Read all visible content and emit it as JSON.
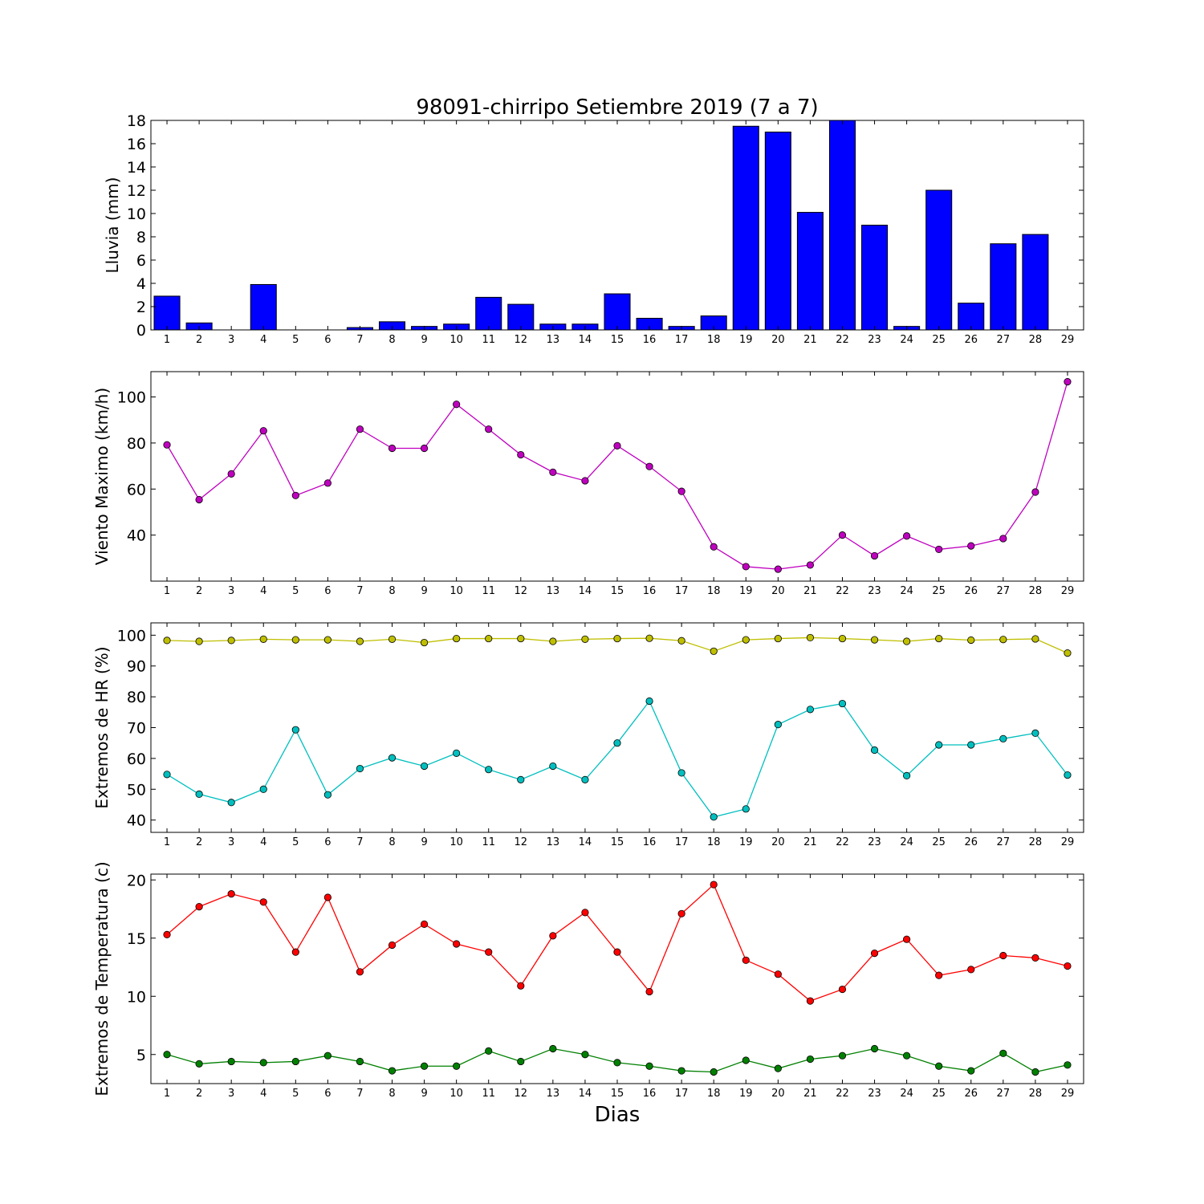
{
  "figure_title": "98091-chirripo Setiembre 2019  (7 a 7)",
  "x_label": "Dias",
  "chart_data": [
    {
      "type": "bar",
      "ylabel": "Lluvia (mm)",
      "ylim": [
        0,
        18
      ],
      "yticks": [
        0,
        2,
        4,
        6,
        8,
        10,
        12,
        14,
        16,
        18
      ],
      "x": [
        1,
        2,
        3,
        4,
        5,
        6,
        7,
        8,
        9,
        10,
        11,
        12,
        13,
        14,
        15,
        16,
        17,
        18,
        19,
        20,
        21,
        22,
        23,
        24,
        25,
        26,
        27,
        28,
        29
      ],
      "color": "#0000ff",
      "series": [
        {
          "values": [
            2.9,
            0.6,
            0,
            3.9,
            0,
            0,
            0.2,
            0.7,
            0.3,
            0.5,
            2.8,
            2.2,
            0.5,
            0.5,
            3.1,
            1.0,
            0.3,
            1.2,
            17.5,
            17.0,
            10.1,
            18.0,
            9.0,
            0.3,
            12.0,
            2.3,
            7.4,
            8.2,
            0
          ]
        }
      ]
    },
    {
      "type": "line",
      "ylabel": "Viento Maximo (km/h)",
      "ylim": [
        20,
        111
      ],
      "yticks": [
        40,
        60,
        80,
        100
      ],
      "x": [
        1,
        2,
        3,
        4,
        5,
        6,
        7,
        8,
        9,
        10,
        11,
        12,
        13,
        14,
        15,
        16,
        17,
        18,
        19,
        20,
        21,
        22,
        23,
        24,
        25,
        26,
        27,
        28,
        29
      ],
      "series": [
        {
          "color": "#bf00bf",
          "values": [
            79.2,
            55.4,
            66.6,
            85.3,
            57.2,
            62.6,
            86.0,
            77.7,
            77.7,
            96.8,
            86.0,
            74.9,
            67.3,
            63.6,
            78.8,
            69.8,
            59.0,
            34.9,
            26.3,
            25.2,
            27.0,
            40.0,
            31.0,
            39.6,
            33.8,
            35.3,
            38.5,
            58.7,
            106.6
          ]
        }
      ]
    },
    {
      "type": "line",
      "ylabel": "Extremos de HR (%)",
      "ylim": [
        36,
        104
      ],
      "yticks": [
        40,
        50,
        60,
        70,
        80,
        90,
        100
      ],
      "x": [
        1,
        2,
        3,
        4,
        5,
        6,
        7,
        8,
        9,
        10,
        11,
        12,
        13,
        14,
        15,
        16,
        17,
        18,
        19,
        20,
        21,
        22,
        23,
        24,
        25,
        26,
        27,
        28,
        29
      ],
      "series": [
        {
          "color": "#bfbf00",
          "values": [
            98.3,
            98.0,
            98.3,
            98.7,
            98.5,
            98.5,
            98.0,
            98.7,
            97.6,
            98.9,
            98.9,
            98.9,
            98.0,
            98.7,
            98.9,
            99.0,
            98.2,
            94.8,
            98.5,
            98.9,
            99.2,
            98.9,
            98.5,
            98.0,
            98.9,
            98.4,
            98.6,
            98.8,
            94.2
          ]
        },
        {
          "color": "#00bfbf",
          "values": [
            54.8,
            48.4,
            45.7,
            50.0,
            69.3,
            48.2,
            56.7,
            60.2,
            57.5,
            61.7,
            56.4,
            53.1,
            57.5,
            53.1,
            65.0,
            78.6,
            55.3,
            41.0,
            43.6,
            71.0,
            75.9,
            77.8,
            62.7,
            54.4,
            64.4,
            64.4,
            66.4,
            68.2,
            54.6
          ]
        }
      ]
    },
    {
      "type": "line",
      "ylabel": "Extremos de Temperatura (c)",
      "ylim": [
        2.5,
        20.5
      ],
      "yticks": [
        5,
        10,
        15,
        20
      ],
      "x": [
        1,
        2,
        3,
        4,
        5,
        6,
        7,
        8,
        9,
        10,
        11,
        12,
        13,
        14,
        15,
        16,
        17,
        18,
        19,
        20,
        21,
        22,
        23,
        24,
        25,
        26,
        27,
        28,
        29
      ],
      "series": [
        {
          "color": "#ff0000",
          "values": [
            15.3,
            17.7,
            18.8,
            18.1,
            13.8,
            18.5,
            12.1,
            14.4,
            16.2,
            14.5,
            13.8,
            10.9,
            15.2,
            17.2,
            13.8,
            10.4,
            17.1,
            19.6,
            13.1,
            11.9,
            9.6,
            10.6,
            13.7,
            14.9,
            11.8,
            12.3,
            13.5,
            13.3,
            12.6
          ]
        },
        {
          "color": "#008000",
          "values": [
            5.0,
            4.2,
            4.4,
            4.3,
            4.4,
            4.9,
            4.4,
            3.6,
            4.0,
            4.0,
            5.3,
            4.4,
            5.5,
            5.0,
            4.3,
            4.0,
            3.6,
            3.5,
            4.5,
            3.8,
            4.6,
            4.9,
            5.5,
            4.9,
            4.0,
            3.6,
            5.1,
            3.5,
            4.1
          ]
        }
      ]
    }
  ]
}
